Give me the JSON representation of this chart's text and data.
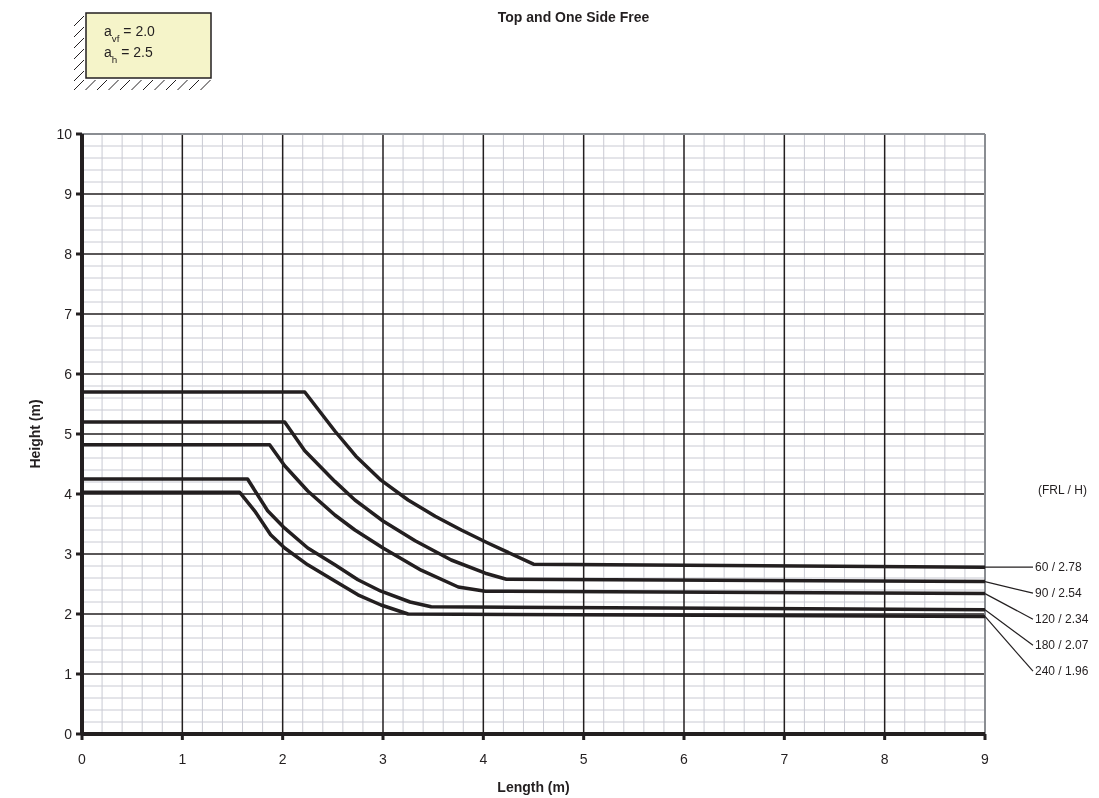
{
  "chart_data": {
    "type": "line",
    "title": "Top and One Side Free",
    "xlabel": "Length (m)",
    "ylabel": "Height (m)",
    "legend_title": "(FRL / H)",
    "annotations": [
      "a$_{vf}$ = 2.0",
      "a$_{h}$ =  2.5"
    ],
    "xlim": [
      0,
      9
    ],
    "ylim": [
      0,
      10
    ],
    "xticks": [
      0,
      1,
      2,
      3,
      4,
      5,
      6,
      7,
      8,
      9
    ],
    "yticks": [
      0,
      1,
      2,
      3,
      4,
      5,
      6,
      7,
      8,
      9,
      10
    ],
    "grid": true,
    "legend": "right",
    "marker": "none",
    "line_style": "solid",
    "series": [
      {
        "name": "60 / 2.78",
        "color": "#231f20",
        "x": [
          0,
          2.22,
          2.52,
          2.73,
          2.98,
          3.25,
          3.52,
          3.78,
          4.05,
          4.5,
          9
        ],
        "values": [
          5.7,
          5.7,
          5.05,
          4.63,
          4.23,
          3.9,
          3.63,
          3.4,
          3.18,
          2.83,
          2.78
        ]
      },
      {
        "name": "90 / 2.54",
        "color": "#231f20",
        "x": [
          0,
          2.02,
          2.22,
          2.52,
          2.72,
          3.0,
          3.32,
          3.68,
          4.02,
          4.23,
          9
        ],
        "values": [
          5.2,
          5.2,
          4.72,
          4.21,
          3.9,
          3.55,
          3.22,
          2.9,
          2.68,
          2.58,
          2.54
        ]
      },
      {
        "name": "120 / 2.34",
        "color": "#231f20",
        "x": [
          0,
          1.87,
          2.02,
          2.25,
          2.52,
          2.72,
          3.0,
          3.38,
          3.75,
          4.02,
          9
        ],
        "values": [
          4.82,
          4.82,
          4.47,
          4.05,
          3.65,
          3.4,
          3.1,
          2.73,
          2.45,
          2.38,
          2.34
        ]
      },
      {
        "name": "180 / 2.07",
        "color": "#231f20",
        "x": [
          0,
          1.65,
          1.85,
          2.02,
          2.25,
          2.52,
          2.75,
          2.98,
          3.27,
          3.48,
          9
        ],
        "values": [
          4.25,
          4.25,
          3.72,
          3.43,
          3.1,
          2.82,
          2.57,
          2.38,
          2.2,
          2.12,
          2.07
        ]
      },
      {
        "name": "240 / 1.96",
        "color": "#231f20",
        "x": [
          0,
          1.57,
          1.72,
          1.88,
          2.02,
          2.25,
          2.52,
          2.75,
          2.98,
          3.25,
          9
        ],
        "values": [
          4.03,
          4.03,
          3.72,
          3.32,
          3.1,
          2.82,
          2.55,
          2.32,
          2.15,
          2.0,
          1.96
        ]
      }
    ]
  }
}
